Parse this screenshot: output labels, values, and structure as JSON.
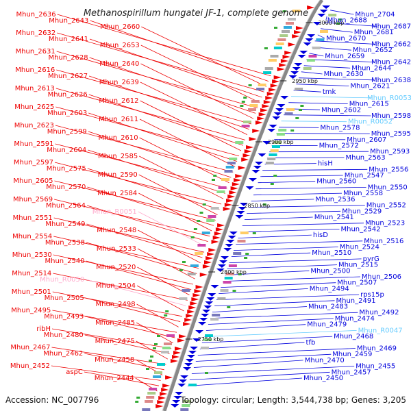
{
  "title": "Methanospirillum hungatei JF-1, complete genome",
  "accession": "Accession: NC_007796",
  "topology": "Topology: circular; Length: 3,544,738 bp; Genes: 3,205",
  "colors": {
    "forward": "#ee0000",
    "reverse": "#0000dd",
    "rna": "#66ccff",
    "rna_left": "#ffaacc",
    "backbone": "#888888",
    "tick_mark": "#33aa33"
  },
  "scale_ticks": [
    "3000 kbp",
    "2950 kbp",
    "2900 kbp",
    "2850 kbp",
    "2800 kbp",
    "2750 kbp"
  ],
  "left_labels": [
    "Mhun_2636",
    "Mhun_2643",
    "Mhun_2660",
    "Mhun_2632",
    "Mhun_2641",
    "Mhun_2653",
    "Mhun_2631",
    "Mhun_2628",
    "Mhun_2640",
    "Mhun_2616",
    "Mhun_2627",
    "Mhun_2639",
    "Mhun_2613",
    "Mhun_2626",
    "Mhun_2612",
    "Mhun_2625",
    "Mhun_2603",
    "Mhun_2611",
    "Mhun_2623",
    "Mhun_2599",
    "Mhun_2610",
    "Mhun_2591",
    "Mhun_2604",
    "Mhun_2585",
    "Mhun_2597",
    "Mhun_2575",
    "Mhun_2590",
    "Mhun_2605",
    "Mhun_2570",
    "Mhun_2584",
    "Mhun_2569",
    "Mhun_2564",
    "Mhun_R0051",
    "Mhun_2551",
    "Mhun_2549",
    "Mhun_2548",
    "Mhun_2554",
    "Mhun_2538",
    "Mhun_2533",
    "Mhun_2530",
    "Mhun_2540",
    "Mhun_2520",
    "Mhun_2514",
    "Mhun_R0050",
    "Mhun_2504",
    "Mhun_2501",
    "Mhun_2505",
    "Mhun_2498",
    "Mhun_2495",
    "Mhun_2493",
    "Mhun_2485",
    "ribH",
    "Mhun_2480",
    "Mhun_2475",
    "Mhun_2467",
    "Mhun_2462",
    "Mhun_2458",
    "Mhun_2452",
    "aspC",
    "Mhun_2444"
  ],
  "right_labels": [
    "Mhun_2704",
    "Mhun_2688",
    "Mhun_2687",
    "Mhun_2681",
    "Mhun_2670",
    "Mhun_2662",
    "Mhun_2652",
    "Mhun_2659",
    "Mhun_2642",
    "Mhun_2644",
    "Mhun_2630",
    "Mhun_2638",
    "Mhun_2621",
    "tmk",
    "Mhun_R0053",
    "Mhun_2615",
    "Mhun_2602",
    "Mhun_2598",
    "Mhun_R0052",
    "Mhun_2578",
    "Mhun_2595",
    "Mhun_2607",
    "Mhun_2572",
    "Mhun_2593",
    "Mhun_2563",
    "hisH",
    "Mhun_2556",
    "Mhun_2547",
    "Mhun_2560",
    "Mhun_2550",
    "Mhun_2558",
    "Mhun_2536",
    "Mhun_2552",
    "Mhun_2529",
    "Mhun_2541",
    "Mhun_2523",
    "Mhun_2542",
    "hisD",
    "Mhun_2516",
    "Mhun_2524",
    "Mhun_2510",
    "pyrG",
    "Mhun_2515",
    "Mhun_2500",
    "Mhun_2506",
    "Mhun_2507",
    "Mhun_2494",
    "rps15p",
    "Mhun_2491",
    "Mhun_2483",
    "Mhun_2492",
    "Mhun_2474",
    "Mhun_2479",
    "Mhun_R0047",
    "Mhun_2468",
    "tfb",
    "Mhun_2469",
    "Mhun_2459",
    "Mhun_2470",
    "Mhun_2455",
    "Mhun_2457",
    "Mhun_2450"
  ]
}
